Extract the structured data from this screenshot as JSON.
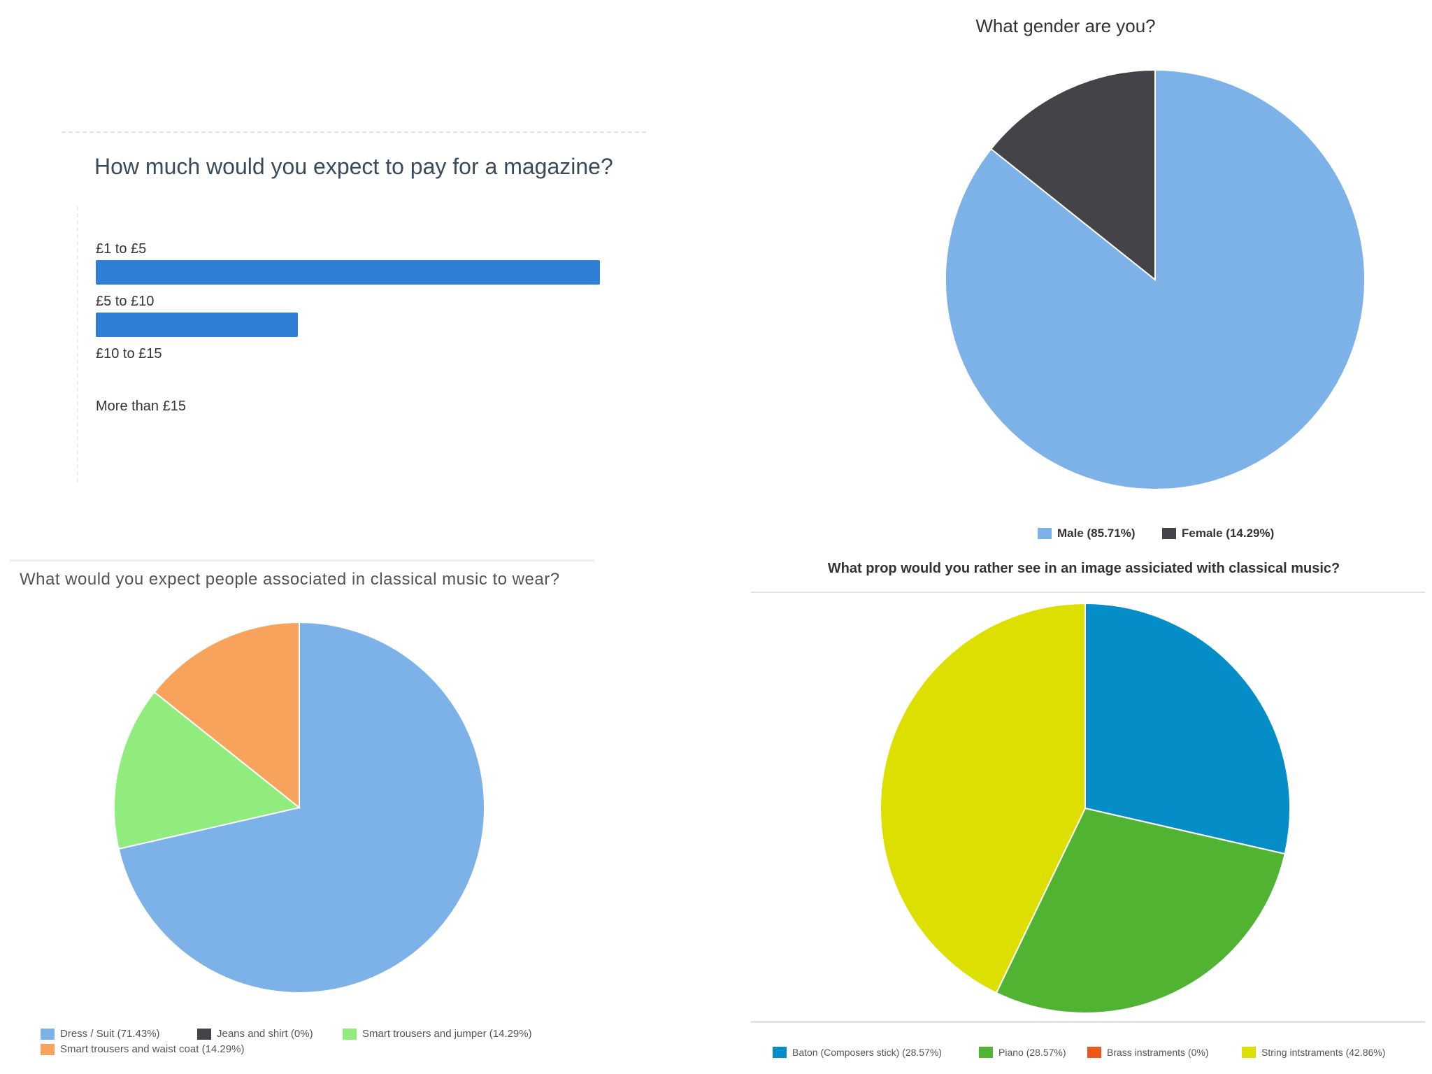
{
  "chart_data": [
    {
      "type": "bar",
      "orientation": "horizontal",
      "title": "How much would you expect to pay for a magazine?",
      "categories": [
        "£1 to £5",
        "£5 to £10",
        "£10 to £15",
        "More than £15"
      ],
      "values": [
        71.43,
        28.57,
        0,
        0
      ],
      "colors": {
        "bar": "#2f7fd6"
      }
    },
    {
      "type": "pie",
      "title": "What gender are you?",
      "slices": [
        {
          "label": "Male (85.71%)",
          "value": 85.71,
          "color": "#7cb2e8"
        },
        {
          "label": "Female (14.29%)",
          "value": 14.29,
          "color": "#434348"
        }
      ]
    },
    {
      "type": "pie",
      "title": "What would you expect people associated in classical music to wear?",
      "slices": [
        {
          "label": "Dress / Suit (71.43%)",
          "value": 71.43,
          "color": "#7cb2e8"
        },
        {
          "label": "Jeans and shirt (0%)",
          "value": 0,
          "color": "#434348"
        },
        {
          "label": "Smart trousers and jumper (14.29%)",
          "value": 14.29,
          "color": "#90ed7d"
        },
        {
          "label": "Smart trousers and waist coat (14.29%)",
          "value": 14.29,
          "color": "#f7a35c"
        }
      ]
    },
    {
      "type": "pie",
      "title": "What prop would you rather see in an image assiciated with classical music?",
      "slices": [
        {
          "label": "Baton (Composers stick) (28.57%)",
          "value": 28.57,
          "color": "#058dc7"
        },
        {
          "label": "Piano (28.57%)",
          "value": 28.57,
          "color": "#50b432"
        },
        {
          "label": "Brass instraments (0%)",
          "value": 0,
          "color": "#ed561b"
        },
        {
          "label": "String intstraments (42.86%)",
          "value": 42.86,
          "color": "#dddf00"
        }
      ]
    }
  ]
}
